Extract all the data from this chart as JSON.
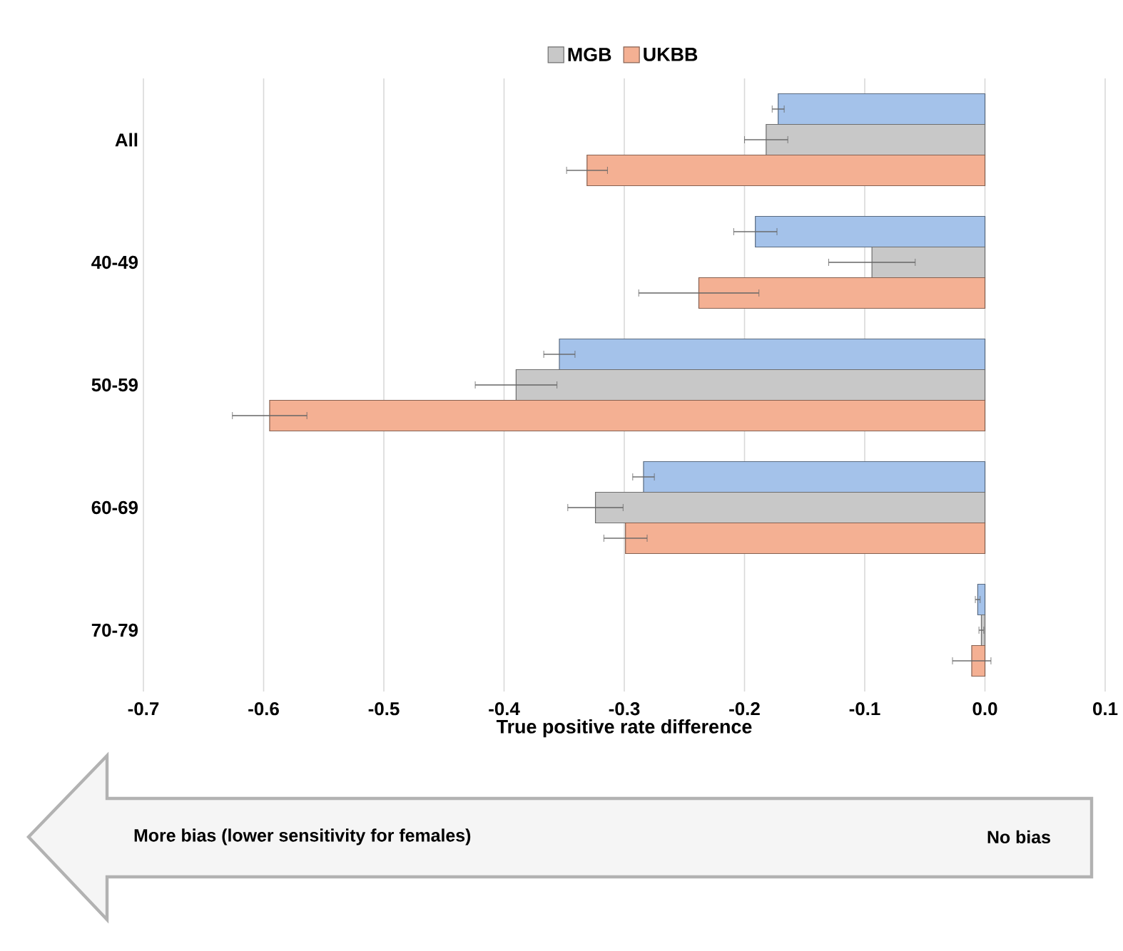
{
  "chart_data": {
    "type": "bar",
    "orientation": "horizontal",
    "xlabel": "True positive rate difference",
    "categories": [
      "All",
      "40-49",
      "50-59",
      "60-69",
      "70-79"
    ],
    "series": [
      {
        "color": "#a4c2ea",
        "values": [
          -0.172,
          -0.191,
          -0.354,
          -0.284,
          -0.006
        ],
        "errors": [
          0.005,
          0.018,
          0.013,
          0.009,
          0.002
        ]
      },
      {
        "name": "MGB",
        "color": "#c8c8c8",
        "values": [
          -0.182,
          -0.094,
          -0.39,
          -0.324,
          -0.003
        ],
        "errors": [
          0.018,
          0.036,
          0.034,
          0.023,
          0.002
        ]
      },
      {
        "name": "UKBB",
        "color": "#f4b093",
        "values": [
          -0.331,
          -0.238,
          -0.595,
          -0.299,
          -0.011
        ],
        "errors": [
          0.017,
          0.05,
          0.031,
          0.018,
          0.016
        ]
      }
    ],
    "xlim": [
      -0.7,
      0.1
    ],
    "xticks": [
      -0.7,
      -0.6,
      -0.5,
      -0.4,
      -0.3,
      -0.2,
      -0.1,
      {
        "value": 0,
        "label": "0.0"
      },
      0.1
    ],
    "grid": "x",
    "legend": "top",
    "annotations": [
      "More bias (lower sensitivity for females)",
      "No bias"
    ]
  }
}
